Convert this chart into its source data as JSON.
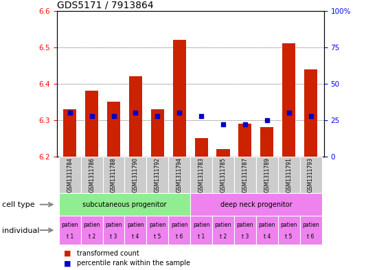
{
  "title": "GDS5171 / 7913864",
  "samples": [
    "GSM1311784",
    "GSM1311786",
    "GSM1311788",
    "GSM1311790",
    "GSM1311792",
    "GSM1311794",
    "GSM1311783",
    "GSM1311785",
    "GSM1311787",
    "GSM1311789",
    "GSM1311791",
    "GSM1311793"
  ],
  "bar_values": [
    6.33,
    6.38,
    6.35,
    6.42,
    6.33,
    6.52,
    6.25,
    6.22,
    6.29,
    6.28,
    6.51,
    6.44
  ],
  "bar_bottom": 6.2,
  "dot_percentile": [
    30,
    28,
    28,
    30,
    28,
    30,
    28,
    22,
    22,
    25,
    30,
    28
  ],
  "ylim_left": [
    6.2,
    6.6
  ],
  "ylim_right": [
    0,
    100
  ],
  "yticks_left": [
    6.2,
    6.3,
    6.4,
    6.5,
    6.6
  ],
  "yticks_right": [
    0,
    25,
    50,
    75,
    100
  ],
  "ytick_labels_right": [
    "0",
    "25",
    "50",
    "75",
    "100%"
  ],
  "bar_color": "#cc2200",
  "dot_color": "#0000cc",
  "cell_type_groups": [
    {
      "label": "subcutaneous progenitor",
      "start": 0,
      "end": 6,
      "color": "#90ee90"
    },
    {
      "label": "deep neck progenitor",
      "start": 6,
      "end": 12,
      "color": "#ee82ee"
    }
  ],
  "individual_labels": [
    "patien\nt 1",
    "patien\nt 2",
    "patien\nt 3",
    "patien\nt 4",
    "patien\nt 5",
    "patien\nt 6",
    "patien\nt 1",
    "patien\nt 2",
    "patien\nt 3",
    "patien\nt 4",
    "patien\nt 5",
    "patien\nt 6"
  ],
  "individual_color": "#ee82ee",
  "header_bg": "#cccccc",
  "legend_bar_label": "transformed count",
  "legend_dot_label": "percentile rank within the sample",
  "cell_type_label": "cell type",
  "individual_label": "individual",
  "title_fontsize": 10,
  "tick_fontsize": 7.5,
  "sample_fontsize": 5.5,
  "label_fontsize": 8
}
